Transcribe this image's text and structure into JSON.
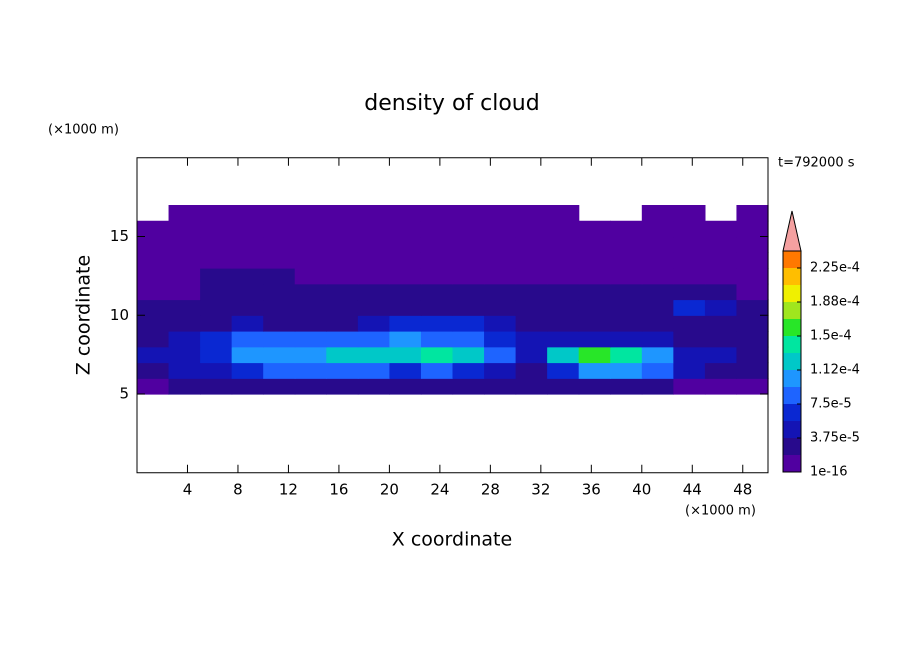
{
  "chart_data": {
    "type": "contour",
    "title": "density of cloud",
    "xlabel": "X coordinate",
    "ylabel": "Z coordinate",
    "x_unit": "(×1000 m)",
    "y_unit": "(×1000 m)",
    "time_label": "t=792000 s",
    "xlim": [
      0,
      50
    ],
    "ylim": [
      0,
      20
    ],
    "xticks": [
      4,
      8,
      12,
      16,
      20,
      24,
      28,
      32,
      36,
      40,
      44,
      48
    ],
    "yticks": [
      5,
      10,
      15
    ],
    "x": [
      1.25,
      3.75,
      6.25,
      8.75,
      11.25,
      13.75,
      16.25,
      18.75,
      21.25,
      23.75,
      26.25,
      28.75,
      31.25,
      33.75,
      36.25,
      38.75,
      41.25,
      43.75,
      46.25,
      48.75
    ],
    "y": [
      5.5,
      6.5,
      7.5,
      8.5,
      9.5,
      10.5,
      11.5,
      12.5,
      13.5,
      14.5,
      15.5,
      16.5
    ],
    "values": [
      [
        1e-06,
        2e-05,
        2e-05,
        2e-05,
        2e-05,
        2e-05,
        2e-05,
        2e-05,
        3e-05,
        2e-05,
        2e-05,
        3e-05,
        2e-05,
        2e-05,
        2e-05,
        2e-05,
        2e-05,
        1e-06,
        1e-06,
        1e-06
      ],
      [
        3e-05,
        4e-05,
        5e-05,
        7e-05,
        8e-05,
        8e-05,
        8e-05,
        9e-05,
        7e-05,
        9e-05,
        6e-05,
        4e-05,
        3e-05,
        6e-05,
        0.0001,
        0.0001,
        8e-05,
        4e-05,
        3e-05,
        2e-05
      ],
      [
        4e-05,
        5e-05,
        6e-05,
        0.0001,
        0.00011,
        0.00011,
        0.00012,
        0.00012,
        0.00013,
        0.000135,
        0.00013,
        8e-05,
        5e-05,
        0.00012,
        0.00015,
        0.000145,
        0.0001,
        5e-05,
        4e-05,
        3e-05
      ],
      [
        3e-05,
        5e-05,
        6e-05,
        9e-05,
        9e-05,
        8e-05,
        8e-05,
        8e-05,
        0.0001,
        9e-05,
        8e-05,
        6e-05,
        4e-05,
        4e-05,
        5e-05,
        4e-05,
        4e-05,
        3e-05,
        3e-05,
        2e-05
      ],
      [
        2e-05,
        3e-05,
        3e-05,
        4e-05,
        3e-05,
        3e-05,
        3e-05,
        4e-05,
        6e-05,
        7e-05,
        6e-05,
        4e-05,
        3e-05,
        3e-05,
        2e-05,
        2e-05,
        2e-05,
        3e-05,
        3e-05,
        2e-05
      ],
      [
        2e-05,
        2e-05,
        2e-05,
        2e-05,
        2e-05,
        2e-05,
        2e-05,
        3e-05,
        3e-05,
        3e-05,
        2e-05,
        2e-05,
        2e-05,
        2e-05,
        2e-05,
        2e-05,
        2e-05,
        6e-05,
        5e-05,
        2e-05
      ],
      [
        1e-06,
        1e-06,
        2e-05,
        2e-05,
        2e-05,
        2e-05,
        2e-05,
        2e-05,
        2e-05,
        2e-05,
        2e-05,
        2e-05,
        2e-05,
        2e-05,
        2e-05,
        2e-05,
        2e-05,
        2e-05,
        2e-05,
        1e-06
      ],
      [
        1e-06,
        1e-06,
        2e-05,
        2e-05,
        2e-05,
        1e-06,
        1e-06,
        1e-06,
        1e-06,
        1e-06,
        1e-06,
        1e-06,
        1e-06,
        1e-06,
        1e-06,
        1e-06,
        1e-06,
        1e-06,
        1e-06,
        1e-06
      ],
      [
        1e-06,
        1e-06,
        1e-06,
        1e-06,
        1e-06,
        1e-06,
        1e-06,
        1e-06,
        1e-06,
        1e-06,
        1e-06,
        1e-06,
        1e-06,
        1e-06,
        1e-06,
        1e-06,
        1e-06,
        1e-06,
        1e-06,
        1e-06
      ],
      [
        1e-06,
        1e-06,
        1e-06,
        1e-06,
        1e-06,
        1e-06,
        1e-06,
        1e-06,
        1e-06,
        1e-06,
        1e-06,
        1e-06,
        1e-06,
        1e-06,
        1e-06,
        1e-06,
        1e-06,
        1e-06,
        1e-06,
        1e-06
      ],
      [
        1e-06,
        1e-06,
        1e-06,
        1e-06,
        1e-06,
        1e-06,
        1e-06,
        1e-06,
        1e-06,
        1e-06,
        1e-06,
        1e-06,
        1e-06,
        1e-06,
        1e-06,
        1e-06,
        1e-06,
        1e-06,
        1e-06,
        1e-06
      ],
      [
        null,
        1e-06,
        1e-06,
        1e-06,
        1e-06,
        1e-06,
        1e-06,
        1e-06,
        1e-06,
        1e-06,
        1e-06,
        1e-06,
        1e-06,
        1e-06,
        null,
        null,
        1e-06,
        1e-06,
        null,
        1e-06
      ]
    ],
    "levels": [
      1e-16,
      1.875e-05,
      3.75e-05,
      5.625e-05,
      7.5e-05,
      9.375e-05,
      0.0001125,
      0.00013125,
      0.00015,
      0.00016875,
      0.0001875,
      0.00020625,
      0.000225,
      0.00024375
    ],
    "colors": [
      "#5000a0",
      "#280a8c",
      "#1414b4",
      "#0a28d2",
      "#1e64ff",
      "#1e96ff",
      "#00c8c8",
      "#00e6a0",
      "#28e628",
      "#a0e61e",
      "#f0f000",
      "#ffbe00",
      "#ff7800"
    ],
    "extend_color": "#f4a0a0",
    "cticks": [
      {
        "value": 1e-16,
        "label": "1e-16"
      },
      {
        "value": 3.75e-05,
        "label": "3.75e-5"
      },
      {
        "value": 7.5e-05,
        "label": "7.5e-5"
      },
      {
        "value": 0.0001125,
        "label": "1.12e-4"
      },
      {
        "value": 0.00015,
        "label": "1.5e-4"
      },
      {
        "value": 0.0001875,
        "label": "1.88e-4"
      },
      {
        "value": 0.000225,
        "label": "2.25e-4"
      }
    ]
  }
}
